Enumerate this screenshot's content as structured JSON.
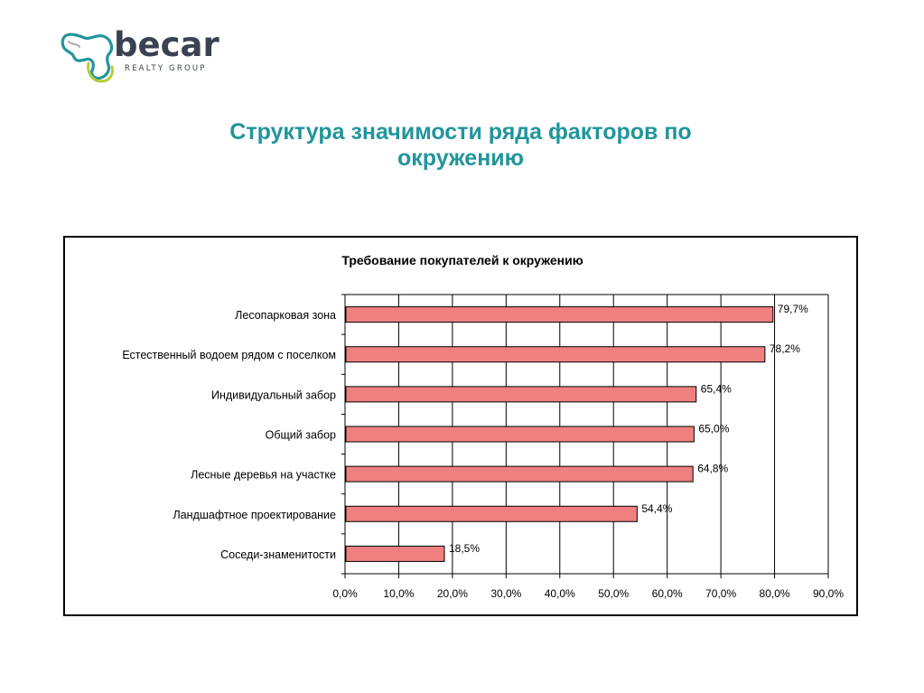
{
  "brand": {
    "name": "becar",
    "subtitle": "REALTY GROUP",
    "colors": {
      "primary": "#21959b",
      "accent": "#b5cc3a",
      "text": "#3a4150"
    }
  },
  "page": {
    "title_line1": "Структура значимости ряда факторов по",
    "title_line2": "окружению"
  },
  "chart_data": {
    "type": "bar",
    "orientation": "horizontal",
    "title": "Требование покупателей к окружению",
    "categories": [
      "Лесопарковая зона",
      "Естественный водоем рядом с поселком",
      "Индивидуальный забор",
      "Общий забор",
      "Лесные деревья на участке",
      "Ландшафтное проектирование",
      "Соседи-знаменитости"
    ],
    "values": [
      79.7,
      78.2,
      65.4,
      65.0,
      64.8,
      54.4,
      18.5
    ],
    "value_labels": [
      "79,7%",
      "78,2%",
      "65,4%",
      "65,0%",
      "64,8%",
      "54,4%",
      "18,5%"
    ],
    "xlim": [
      0,
      90
    ],
    "x_ticks": [
      "0,0%",
      "10,0%",
      "20,0%",
      "30,0%",
      "40,0%",
      "50,0%",
      "60,0%",
      "70,0%",
      "80,0%",
      "90,0%"
    ],
    "grid": "vertical",
    "legend": "none",
    "colors": {
      "bar_fill": "#f08080",
      "bar_stroke": "#000000",
      "grid": "#000000"
    }
  }
}
